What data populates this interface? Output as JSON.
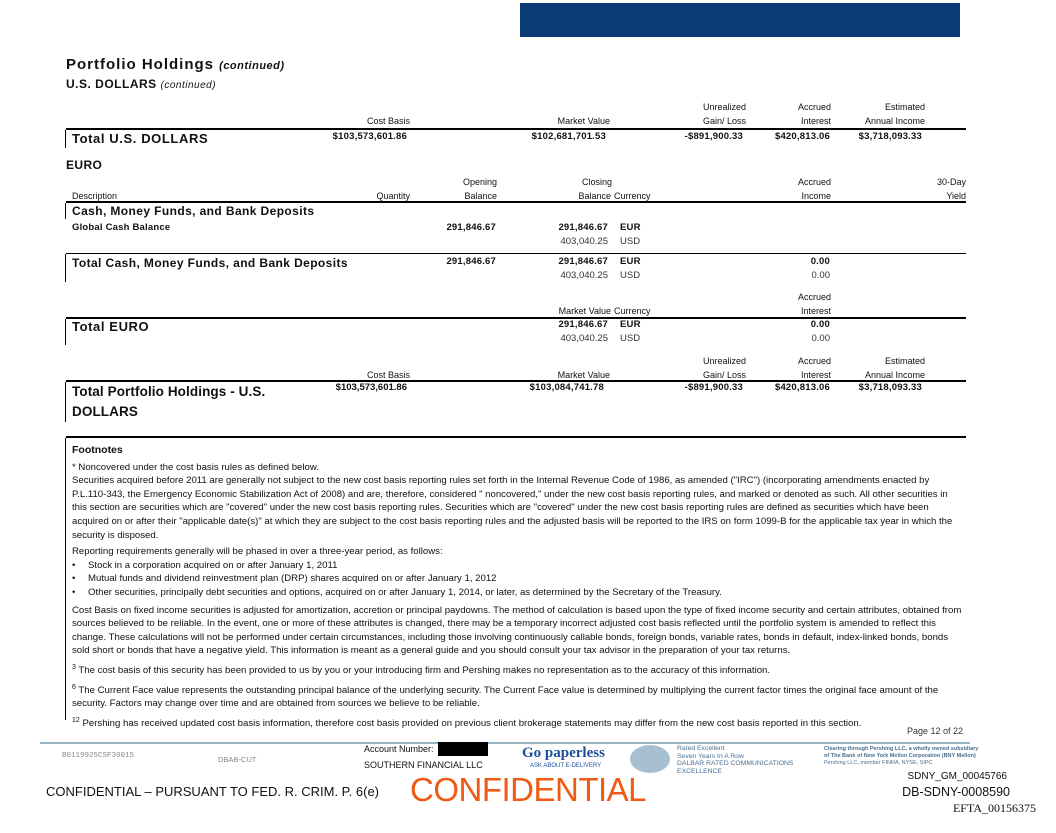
{
  "header": {
    "bar_color": "#0b3b75",
    "title": "Portfolio Holdings",
    "title_suffix": "(continued)",
    "subtitle": "U.S. DOLLARS",
    "subtitle_suffix": "(continued)"
  },
  "usd": {
    "headers": {
      "cost_basis": "Cost Basis",
      "market_value": "Market Value",
      "unrealized_1": "Unrealized",
      "unrealized_2": "Gain/ Loss",
      "accrued_1": "Accrued",
      "accrued_2": "Interest",
      "estimated_1": "Estimated",
      "estimated_2": "Annual Income"
    },
    "total": {
      "label": "Total U.S. DOLLARS",
      "cost_basis": "$103,573,601.86",
      "market_value": "$102,681,701.53",
      "gain_loss": "-$891,900.33",
      "accrued_interest": "$420,813.06",
      "annual_income": "$3,718,093.33"
    }
  },
  "euro": {
    "title": "EURO",
    "headers": {
      "description": "Description",
      "quantity": "Quantity",
      "opening_1": "Opening",
      "opening_2": "Balance",
      "closing_1": "Closing",
      "closing_2": "Balance",
      "currency": "Currency",
      "accrued_1": "Accrued",
      "accrued_2": "Income",
      "yield_1": "30-Day",
      "yield_2": "Yield"
    },
    "section": "Cash, Money Funds, and Bank Deposits",
    "row": {
      "description": "Global Cash Balance",
      "opening": "291,846.67",
      "closing": "291,846.67",
      "currency": "EUR",
      "closing_usd": "403,040.25",
      "currency_usd": "USD"
    },
    "section_total": {
      "label": "Total Cash, Money Funds, and Bank Deposits",
      "opening": "291,846.67",
      "closing": "291,846.67",
      "currency": "EUR",
      "closing_usd": "403,040.25",
      "currency_usd": "USD",
      "accrued": "0.00",
      "accrued_usd": "0.00"
    },
    "total_headers": {
      "market_value": "Market Value",
      "currency": "Currency",
      "accrued_1": "Accrued",
      "accrued_2": "Interest"
    },
    "total": {
      "label": "Total EURO",
      "market_value": "291,846.67",
      "currency": "EUR",
      "market_value_usd": "403,040.25",
      "currency_usd": "USD",
      "accrued": "0.00",
      "accrued_usd": "0.00"
    }
  },
  "portfolio_total": {
    "label_1": "Total Portfolio Holdings - U.S.",
    "label_2": "DOLLARS",
    "cost_basis": "$103,573,601.86",
    "market_value": "$103,084,741.78",
    "gain_loss": "-$891,900.33",
    "accrued_interest": "$420,813.06",
    "annual_income": "$3,718,093.33"
  },
  "footnotes": {
    "title": "Footnotes",
    "p1": "* Noncovered under the cost basis rules as defined below.",
    "p2": "Securities acquired before 2011 are generally not subject to the new cost basis reporting rules set forth in the Internal Revenue Code of 1986, as amended (\"IRC\") (incorporating amendments enacted by P.L.110-343, the Emergency Economic Stabilization Act of 2008) and are, therefore, considered \" noncovered,\" under the new cost basis reporting rules, and marked or denoted as such.  All other securities in this section are securities which are \"covered\" under the new cost basis reporting rules. Securities which are \"covered\" under the new cost basis reporting rules are defined as securities which have been acquired on or after their \"applicable date(s)\" at which they are subject to the cost basis reporting rules and the adjusted basis will be reported to the IRS on form 1099-B for the applicable tax year in which the security is disposed.",
    "p3": "Reporting requirements generally will be phased in over a three-year period, as follows:",
    "bullets": [
      "Stock in a corporation acquired on or after January 1, 2011",
      "Mutual funds and dividend reinvestment plan (DRP) shares acquired on or after January 1, 2012",
      "Other securities, principally debt securities and options, acquired on or after January 1, 2014, or later, as determined by the Secretary of the Treasury."
    ],
    "p4": "Cost Basis on fixed income securities is adjusted for amortization, accretion or principal paydowns. The method of calculation is based upon the type of fixed income security and certain attributes, obtained from sources believed to be reliable. In the event, one or more of these attributes is changed, there may be a temporary incorrect adjusted cost basis reflected until the portfolio system is amended to reflect this change. These calculations will not be performed under certain circumstances, including those involving continuously callable bonds, foreign bonds, variable rates, bonds in default, index-linked bonds, bonds sold short or bonds that have a negative yield. This information is meant as a general guide and you should consult your tax advisor in the preparation of your tax returns.",
    "n3_mark": "3",
    "n3": " The cost basis of this security has been provided to us by you or your introducing firm and Pershing makes no representation as to the accuracy of this information.",
    "n6_mark": "6",
    "n6": " The Current Face value represents the outstanding principal balance of the underlying security. The Current Face value is determined by multiplying the current factor times the original face amount of the security. Factors may change over time and are obtained from sources we believe to be reliable.",
    "n12_mark": "12",
    "n12": " Pershing has received updated cost basis information, therefore cost basis provided on previous client brokerage statements may differ from the new cost basis reported in this section."
  },
  "footer": {
    "page": "Page 12 of 22",
    "code": "B0119925CSF30015",
    "dbab": "DBAB-CUT",
    "account_label": "Account Number:",
    "firm": "SOUTHERN FINANCIAL LLC",
    "go_paperless": "Go paperless",
    "edelivery": "ASK ABOUT E-DELIVERY",
    "dalbar_1": "Rated Excellent",
    "dalbar_2": "Seven Years In A Row",
    "dalbar_3": "DALBAR RATED COMMUNICATIONS",
    "dalbar_4": "EXCELLENCE",
    "clearing_1": "Clearing through Pershing LLC, a wholly owned subsidiary",
    "clearing_2": "of The Bank of New York Mellon Corporation (BNY Mellon)",
    "clearing_3": "Pershing LLC, member FINRA, NYSE, SIPC",
    "confidential_stamp": "CONFIDENTIAL",
    "confidential_notice": "CONFIDENTIAL – PURSUANT TO FED. R. CRIM. P. 6(e)",
    "bates_1": "SDNY_GM_00045766",
    "bates_2": "DB-SDNY-0008590",
    "bates_3": "EFTA_00156375",
    "stamp_color": "#f05a14",
    "link_color": "#1b4f9c"
  }
}
